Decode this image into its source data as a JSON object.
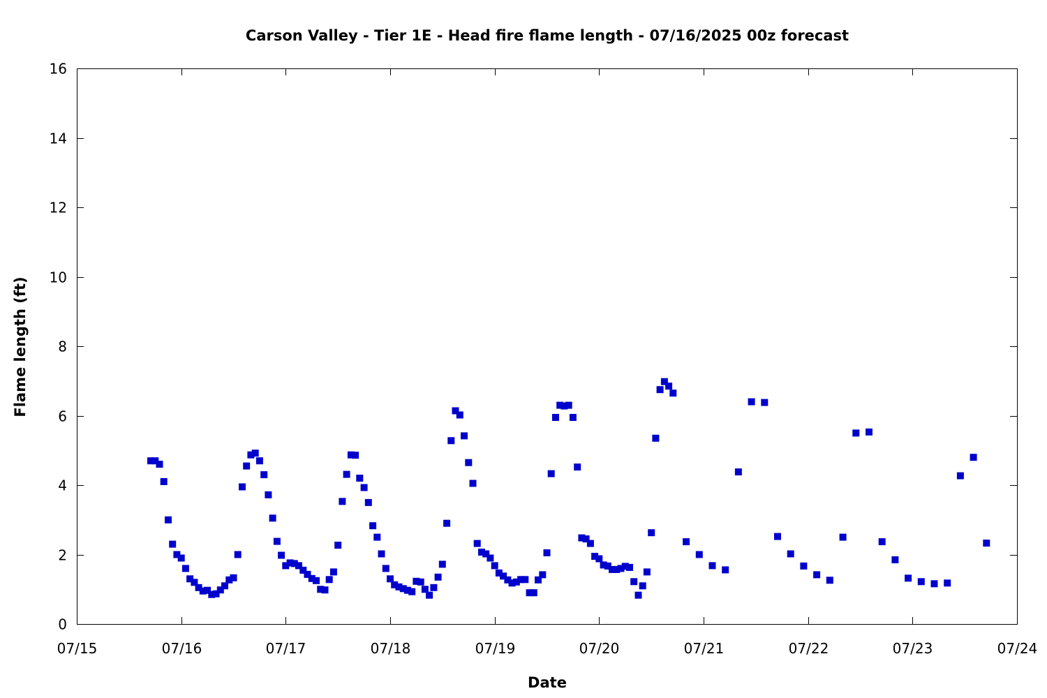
{
  "chart_data": {
    "type": "scatter",
    "title": "Carson Valley - Tier 1E - Head fire flame length - 07/16/2025 00z forecast",
    "xlabel": "Date",
    "ylabel": "Flame length (ft)",
    "xlim": [
      "07/15",
      "07/24"
    ],
    "ylim": [
      0,
      16
    ],
    "y_ticks": [
      0,
      2,
      4,
      6,
      8,
      10,
      12,
      14,
      16
    ],
    "x_ticks": [
      "07/15",
      "07/16",
      "07/17",
      "07/18",
      "07/19",
      "07/20",
      "07/21",
      "07/22",
      "07/23",
      "07/24"
    ],
    "grid": false,
    "marker_color": "#0000cc",
    "points": [
      [
        "07/15 17:00",
        4.7
      ],
      [
        "07/15 18:00",
        4.7
      ],
      [
        "07/15 19:00",
        4.6
      ],
      [
        "07/15 20:00",
        4.1
      ],
      [
        "07/15 21:00",
        3.0
      ],
      [
        "07/15 22:00",
        2.3
      ],
      [
        "07/15 23:00",
        2.0
      ],
      [
        "07/16 00:00",
        1.9
      ],
      [
        "07/16 01:00",
        1.6
      ],
      [
        "07/16 02:00",
        1.3
      ],
      [
        "07/16 03:00",
        1.2
      ],
      [
        "07/16 04:00",
        1.05
      ],
      [
        "07/16 05:00",
        0.95
      ],
      [
        "07/16 06:00",
        0.97
      ],
      [
        "07/16 07:00",
        0.85
      ],
      [
        "07/16 08:00",
        0.87
      ],
      [
        "07/16 09:00",
        0.98
      ],
      [
        "07/16 10:00",
        1.1
      ],
      [
        "07/16 11:00",
        1.27
      ],
      [
        "07/16 12:00",
        1.33
      ],
      [
        "07/16 13:00",
        2.0
      ],
      [
        "07/16 14:00",
        3.95
      ],
      [
        "07/16 15:00",
        4.55
      ],
      [
        "07/16 16:00",
        4.87
      ],
      [
        "07/16 17:00",
        4.92
      ],
      [
        "07/16 18:00",
        4.7
      ],
      [
        "07/16 19:00",
        4.3
      ],
      [
        "07/16 20:00",
        3.72
      ],
      [
        "07/16 21:00",
        3.05
      ],
      [
        "07/16 22:00",
        2.38
      ],
      [
        "07/16 23:00",
        1.98
      ],
      [
        "07/17 00:00",
        1.68
      ],
      [
        "07/17 01:00",
        1.76
      ],
      [
        "07/17 02:00",
        1.74
      ],
      [
        "07/17 03:00",
        1.68
      ],
      [
        "07/17 04:00",
        1.55
      ],
      [
        "07/17 05:00",
        1.43
      ],
      [
        "07/17 06:00",
        1.31
      ],
      [
        "07/17 07:00",
        1.25
      ],
      [
        "07/17 08:00",
        1.0
      ],
      [
        "07/17 09:00",
        0.98
      ],
      [
        "07/17 10:00",
        1.28
      ],
      [
        "07/17 11:00",
        1.5
      ],
      [
        "07/17 12:00",
        2.27
      ],
      [
        "07/17 13:00",
        3.53
      ],
      [
        "07/17 14:00",
        4.31
      ],
      [
        "07/17 15:00",
        4.87
      ],
      [
        "07/17 16:00",
        4.86
      ],
      [
        "07/17 17:00",
        4.2
      ],
      [
        "07/17 18:00",
        3.93
      ],
      [
        "07/17 19:00",
        3.5
      ],
      [
        "07/17 20:00",
        2.83
      ],
      [
        "07/17 21:00",
        2.5
      ],
      [
        "07/17 22:00",
        2.02
      ],
      [
        "07/17 23:00",
        1.6
      ],
      [
        "07/18 00:00",
        1.3
      ],
      [
        "07/18 01:00",
        1.13
      ],
      [
        "07/18 02:00",
        1.07
      ],
      [
        "07/18 03:00",
        1.02
      ],
      [
        "07/18 04:00",
        0.97
      ],
      [
        "07/18 05:00",
        0.93
      ],
      [
        "07/18 06:00",
        1.23
      ],
      [
        "07/18 07:00",
        1.21
      ],
      [
        "07/18 08:00",
        1.0
      ],
      [
        "07/18 09:00",
        0.83
      ],
      [
        "07/18 10:00",
        1.05
      ],
      [
        "07/18 11:00",
        1.35
      ],
      [
        "07/18 12:00",
        1.72
      ],
      [
        "07/18 13:00",
        2.9
      ],
      [
        "07/18 14:00",
        5.28
      ],
      [
        "07/18 15:00",
        6.14
      ],
      [
        "07/18 16:00",
        6.02
      ],
      [
        "07/18 17:00",
        5.42
      ],
      [
        "07/18 18:00",
        4.65
      ],
      [
        "07/18 19:00",
        4.05
      ],
      [
        "07/18 20:00",
        2.32
      ],
      [
        "07/18 21:00",
        2.07
      ],
      [
        "07/18 22:00",
        2.02
      ],
      [
        "07/18 23:00",
        1.9
      ],
      [
        "07/19 00:00",
        1.68
      ],
      [
        "07/19 01:00",
        1.47
      ],
      [
        "07/19 02:00",
        1.38
      ],
      [
        "07/19 03:00",
        1.27
      ],
      [
        "07/19 04:00",
        1.18
      ],
      [
        "07/19 05:00",
        1.21
      ],
      [
        "07/19 06:00",
        1.28
      ],
      [
        "07/19 07:00",
        1.28
      ],
      [
        "07/19 08:00",
        0.9
      ],
      [
        "07/19 09:00",
        0.9
      ],
      [
        "07/19 10:00",
        1.27
      ],
      [
        "07/19 11:00",
        1.42
      ],
      [
        "07/19 12:00",
        2.05
      ],
      [
        "07/19 13:00",
        4.33
      ],
      [
        "07/19 14:00",
        5.95
      ],
      [
        "07/19 15:00",
        6.3
      ],
      [
        "07/19 16:00",
        6.28
      ],
      [
        "07/19 17:00",
        6.3
      ],
      [
        "07/19 18:00",
        5.95
      ],
      [
        "07/19 19:00",
        4.52
      ],
      [
        "07/19 20:00",
        2.48
      ],
      [
        "07/19 21:00",
        2.45
      ],
      [
        "07/19 22:00",
        2.32
      ],
      [
        "07/19 23:00",
        1.95
      ],
      [
        "07/20 00:00",
        1.88
      ],
      [
        "07/20 01:00",
        1.7
      ],
      [
        "07/20 02:00",
        1.67
      ],
      [
        "07/20 03:00",
        1.57
      ],
      [
        "07/20 04:00",
        1.57
      ],
      [
        "07/20 05:00",
        1.6
      ],
      [
        "07/20 06:00",
        1.66
      ],
      [
        "07/20 07:00",
        1.63
      ],
      [
        "07/20 08:00",
        1.22
      ],
      [
        "07/20 09:00",
        0.83
      ],
      [
        "07/20 10:00",
        1.1
      ],
      [
        "07/20 11:00",
        1.5
      ],
      [
        "07/20 12:00",
        2.63
      ],
      [
        "07/20 13:00",
        5.35
      ],
      [
        "07/20 14:00",
        6.75
      ],
      [
        "07/20 15:00",
        6.98
      ],
      [
        "07/20 16:00",
        6.85
      ],
      [
        "07/20 17:00",
        6.65
      ],
      [
        "07/20 20:00",
        2.37
      ],
      [
        "07/20 23:00",
        2.0
      ],
      [
        "07/21 02:00",
        1.68
      ],
      [
        "07/21 05:00",
        1.56
      ],
      [
        "07/21 08:00",
        4.38
      ],
      [
        "07/21 11:00",
        6.4
      ],
      [
        "07/21 14:00",
        6.38
      ],
      [
        "07/21 17:00",
        2.52
      ],
      [
        "07/21 20:00",
        2.02
      ],
      [
        "07/21 23:00",
        1.67
      ],
      [
        "07/22 02:00",
        1.42
      ],
      [
        "07/22 05:00",
        1.26
      ],
      [
        "07/22 08:00",
        2.5
      ],
      [
        "07/22 11:00",
        5.5
      ],
      [
        "07/22 14:00",
        5.53
      ],
      [
        "07/22 17:00",
        2.37
      ],
      [
        "07/22 20:00",
        1.85
      ],
      [
        "07/22 23:00",
        1.32
      ],
      [
        "07/23 02:00",
        1.22
      ],
      [
        "07/23 05:00",
        1.16
      ],
      [
        "07/23 08:00",
        1.18
      ],
      [
        "07/23 11:00",
        4.27
      ],
      [
        "07/23 14:00",
        4.8
      ],
      [
        "07/23 17:00",
        2.33
      ]
    ]
  }
}
